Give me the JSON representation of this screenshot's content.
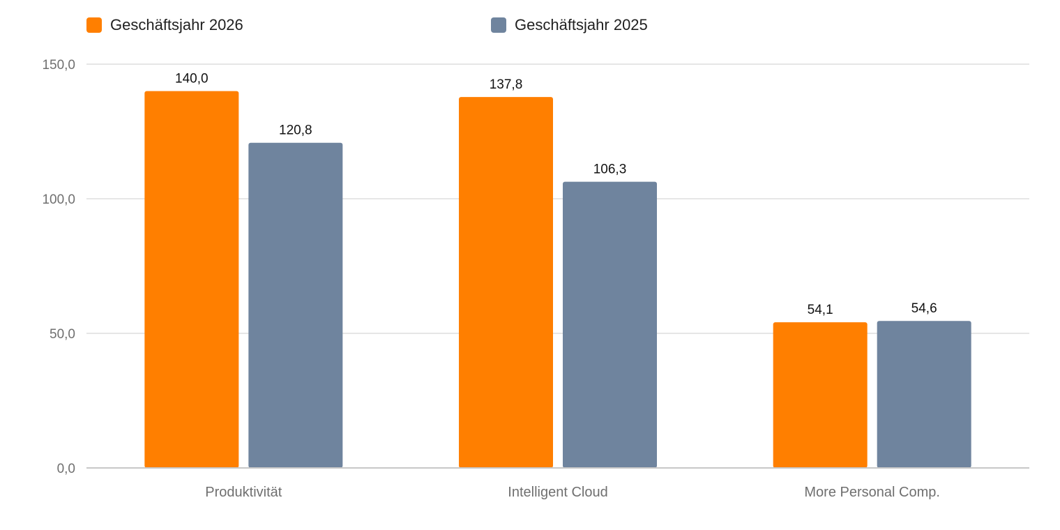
{
  "chart_data": {
    "type": "bar",
    "categories": [
      "Produktivität",
      "Intelligent Cloud",
      "More Personal Comp."
    ],
    "series": [
      {
        "name": "Geschäftsjahr 2026",
        "color": "#ff7f00",
        "values": [
          140.0,
          137.8,
          54.1
        ],
        "labels": [
          "140,0",
          "137,8",
          "54,1"
        ]
      },
      {
        "name": "Geschäftsjahr 2025",
        "color": "#6f849e",
        "values": [
          120.8,
          106.3,
          54.6
        ],
        "labels": [
          "120,8",
          "106,3",
          "54,6"
        ]
      }
    ],
    "y_ticks": [
      "0,0",
      "50,0",
      "100,0",
      "150,0"
    ],
    "ylim": [
      0,
      150
    ],
    "grid": true,
    "legend_position": "top"
  }
}
